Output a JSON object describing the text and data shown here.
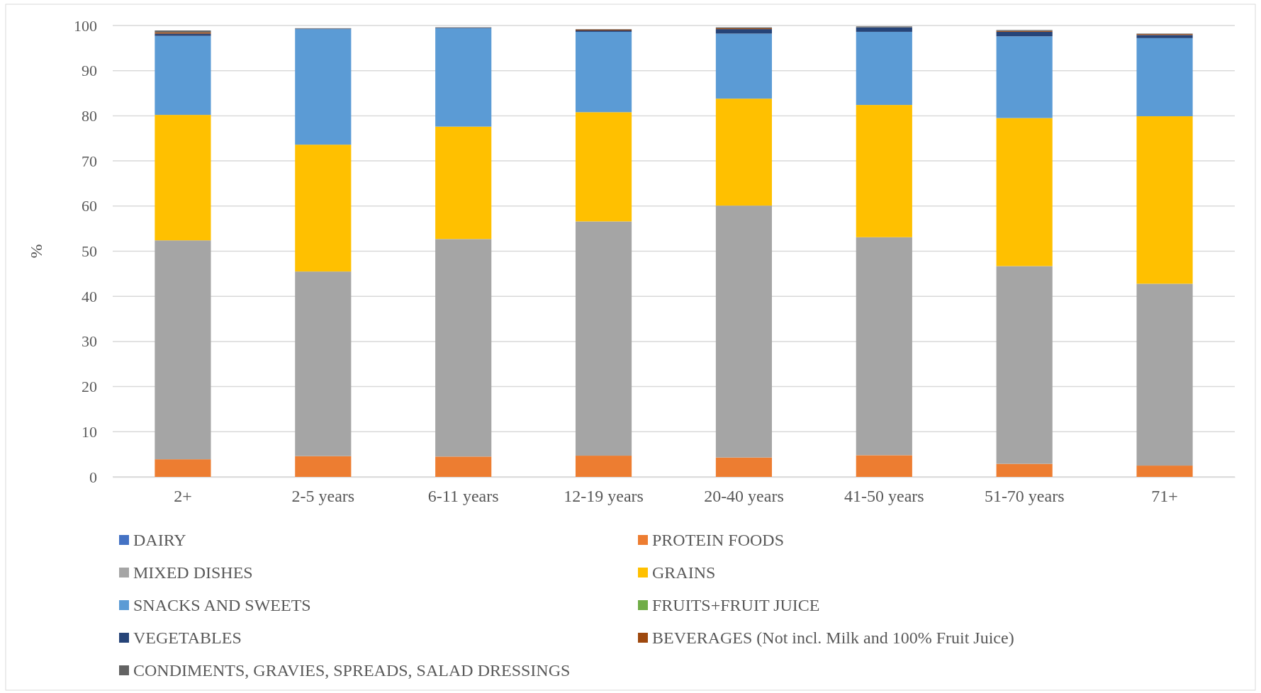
{
  "chart_data": {
    "type": "bar",
    "stacked": true,
    "ylabel": "%",
    "categories": [
      "2+",
      "2-5 years",
      "6-11 years",
      "12-19 years",
      "20-40 years",
      "41-50 years",
      "51-70 years",
      "71+"
    ],
    "series": [
      {
        "name": "DAIRY",
        "color": "#4472c4",
        "values": [
          0,
          0,
          null,
          null,
          0,
          0,
          0,
          0
        ]
      },
      {
        "name": "PROTEIN FOODS",
        "color": "#ed7d31",
        "values": [
          3.9,
          4.6,
          4.5,
          4.7,
          4.3,
          4.8,
          2.9,
          2.5
        ]
      },
      {
        "name": "MIXED DISHES",
        "color": "#a5a5a5",
        "values": [
          48.5,
          40.9,
          48.2,
          51.9,
          55.8,
          48.3,
          43.8,
          40.3
        ]
      },
      {
        "name": "GRAINS",
        "color": "#ffc000",
        "values": [
          27.8,
          28.1,
          24.9,
          24.2,
          23.7,
          29.3,
          32.8,
          37.1
        ]
      },
      {
        "name": "SNACKS AND SWEETS",
        "color": "#5b9bd5",
        "values": [
          17.5,
          25.6,
          21.8,
          17.8,
          14.4,
          16.2,
          18.1,
          17.3
        ]
      },
      {
        "name": "FRUITS+FRUIT JUICE",
        "color": "#70ad47",
        "values": [
          0,
          0,
          0,
          0,
          0,
          0,
          0,
          0
        ]
      },
      {
        "name": "VEGETABLES",
        "color": "#264478",
        "values": [
          0.5,
          0.1,
          0.1,
          0.3,
          1.0,
          1.0,
          1.0,
          0.7
        ]
      },
      {
        "name": "BEVERAGES (Not incl. Milk and 100% Fruit Juice)",
        "color": "#9e480e",
        "values": [
          0.3,
          0,
          0,
          0.2,
          0.2,
          0,
          0.2,
          0.2
        ]
      },
      {
        "name": "CONDIMENTS, GRAVIES, SPREADS, SALAD DRESSINGS",
        "color": "#636363",
        "values": [
          0.4,
          0.1,
          0.1,
          0.1,
          0.2,
          0.2,
          0.2,
          0.1
        ]
      }
    ],
    "ylim": [
      0,
      100
    ],
    "yticks": [
      0,
      10,
      20,
      30,
      40,
      50,
      60,
      70,
      80,
      90,
      100
    ],
    "grid": "y",
    "legend": "bottom"
  }
}
